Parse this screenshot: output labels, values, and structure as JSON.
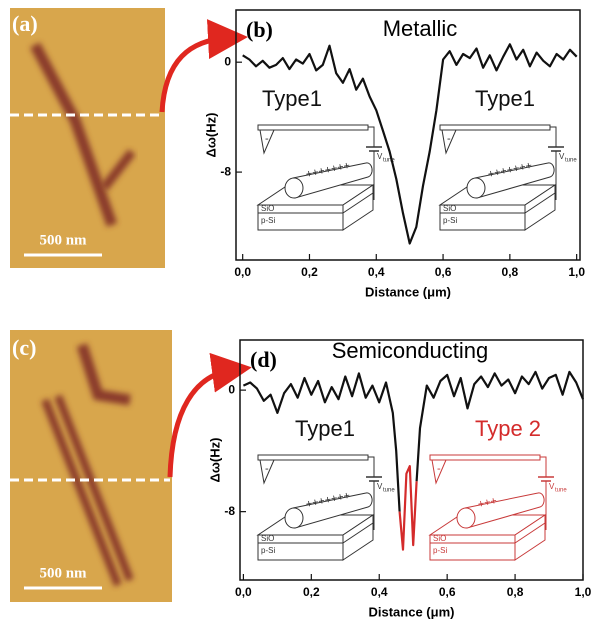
{
  "images": [
    {
      "label": "(a)",
      "scale_bar": "500 nm"
    },
    {
      "label": "(c)",
      "scale_bar": "500 nm"
    }
  ],
  "chart_data": [
    {
      "type": "line",
      "label": "(b)",
      "title": "Metallic",
      "xlabel": "Distance (μm)",
      "ylabel": "Δω(Hz)",
      "annotations": [
        "Type1",
        "Type1"
      ],
      "insets": [
        {
          "tip_charge": "-",
          "charges": "+++++++",
          "supply": "V",
          "supply_sub": "tune",
          "layers": [
            "SiO",
            "p-Si"
          ]
        },
        {
          "tip_charge": "-",
          "charges": "+++++++",
          "supply": "V",
          "supply_sub": "tune",
          "layers": [
            "SiO",
            "p-Si"
          ]
        }
      ],
      "xlim": [
        -0.02,
        1.01
      ],
      "ylim": [
        -14.4,
        3.8
      ],
      "xticks": [
        {
          "value": 0,
          "label": "0,0"
        },
        {
          "value": 0.2,
          "label": "0,2"
        },
        {
          "value": 0.4,
          "label": "0,4"
        },
        {
          "value": 0.6,
          "label": "0,6"
        },
        {
          "value": 0.8,
          "label": "0,8"
        },
        {
          "value": 1,
          "label": "1,0"
        }
      ],
      "yticks": [
        0,
        -8
      ],
      "x": [
        0,
        0.02,
        0.04,
        0.06,
        0.08,
        0.1,
        0.12,
        0.14,
        0.16,
        0.18,
        0.2,
        0.22,
        0.24,
        0.26,
        0.28,
        0.3,
        0.32,
        0.34,
        0.36,
        0.38,
        0.4,
        0.42,
        0.44,
        0.46,
        0.48,
        0.5,
        0.52,
        0.54,
        0.56,
        0.58,
        0.6,
        0.62,
        0.64,
        0.66,
        0.68,
        0.7,
        0.72,
        0.74,
        0.76,
        0.78,
        0.8,
        0.82,
        0.84,
        0.86,
        0.88,
        0.9,
        0.92,
        0.94,
        0.96,
        0.98,
        1
      ],
      "series": [
        {
          "color": "#111111",
          "values": [
            0.5,
            0.2,
            -0.3,
            0.1,
            -0.4,
            -0.2,
            0.3,
            -0.5,
            0.2,
            -0.1,
            0.6,
            -0.6,
            -0.2,
            1.2,
            -0.8,
            -1.5,
            -0.5,
            -2.0,
            -1.2,
            -2.5,
            -3.5,
            -5.0,
            -6.5,
            -8.5,
            -11.0,
            -13.2,
            -12.0,
            -9.0,
            -6.5,
            -3.5,
            0.2,
            0.8,
            -0.2,
            0.6,
            0.3,
            1.0,
            -0.4,
            0.5,
            -0.6,
            0.4,
            1.3,
            0.2,
            0.9,
            -0.3,
            0.7,
            0.1,
            -0.3,
            0.6,
            0.2,
            0.9,
            0.4
          ]
        }
      ]
    },
    {
      "type": "line",
      "label": "(d)",
      "title": "Semiconducting",
      "xlabel": "Distance (μm)",
      "ylabel": "Δω(Hz)",
      "annotations": [
        "Type1",
        "Type 2"
      ],
      "insets": [
        {
          "tip_charge": "-",
          "charges": "+++++++",
          "supply": "V",
          "supply_sub": "tune",
          "layers": [
            "SiO",
            "p-Si"
          ]
        },
        {
          "tip_charge": "-",
          "charges": "+++",
          "supply": "V",
          "supply_sub": "tune",
          "layers": [
            "SiO",
            "p-Si"
          ]
        }
      ],
      "xlim": [
        -0.01,
        1.0
      ],
      "ylim": [
        -12.5,
        3.3
      ],
      "xticks": [
        {
          "value": 0,
          "label": "0,0"
        },
        {
          "value": 0.2,
          "label": "0,2"
        },
        {
          "value": 0.4,
          "label": "0,4"
        },
        {
          "value": 0.6,
          "label": "0,6"
        },
        {
          "value": 0.8,
          "label": "0,8"
        },
        {
          "value": 1,
          "label": "1,0"
        }
      ],
      "yticks": [
        0,
        -8
      ],
      "x": [
        0,
        0.02,
        0.04,
        0.06,
        0.08,
        0.1,
        0.12,
        0.14,
        0.16,
        0.18,
        0.2,
        0.22,
        0.24,
        0.26,
        0.28,
        0.3,
        0.32,
        0.34,
        0.36,
        0.38,
        0.4,
        0.42,
        0.44,
        0.45,
        0.46,
        0.47,
        0.48,
        0.49,
        0.5,
        0.51,
        0.52,
        0.54,
        0.56,
        0.58,
        0.6,
        0.62,
        0.64,
        0.66,
        0.68,
        0.7,
        0.72,
        0.74,
        0.76,
        0.78,
        0.8,
        0.82,
        0.84,
        0.86,
        0.88,
        0.9,
        0.92,
        0.94,
        0.96,
        0.98,
        1
      ],
      "series": [
        {
          "color": "#111111",
          "values": [
            0.3,
            0.5,
            0.1,
            -0.7,
            -0.3,
            -1.5,
            -0.2,
            0.4,
            -0.5,
            0.8,
            -0.3,
            0.6,
            -0.8,
            0.2,
            -0.6,
            0.9,
            -0.4,
            1.1,
            -0.5,
            0.3,
            -0.8,
            0.5,
            -1.5,
            -4.0,
            -8.0,
            null,
            null,
            null,
            null,
            -6.0,
            -2.5,
            0.3,
            -0.5,
            0.6,
            1.0,
            -0.4,
            0.8,
            -1.2,
            0.4,
            0.9,
            0.2,
            1.1,
            0.3,
            0.7,
            -0.2,
            0.9,
            0.4,
            1.2,
            0.1,
            0.8,
            1.0,
            -0.3,
            1.2,
            0.5,
            -0.6
          ]
        },
        {
          "color": "#d42b2b",
          "values": [
            null,
            null,
            null,
            null,
            null,
            null,
            null,
            null,
            null,
            null,
            null,
            null,
            null,
            null,
            null,
            null,
            null,
            null,
            null,
            null,
            null,
            null,
            null,
            null,
            -8.0,
            -10.5,
            -5.5,
            -5.0,
            -10.2,
            -6.0,
            null,
            null,
            null,
            null,
            null,
            null,
            null,
            null,
            null,
            null,
            null,
            null,
            null,
            null,
            null,
            null,
            null,
            null,
            null,
            null,
            null,
            null,
            null,
            null,
            null
          ]
        }
      ]
    }
  ]
}
